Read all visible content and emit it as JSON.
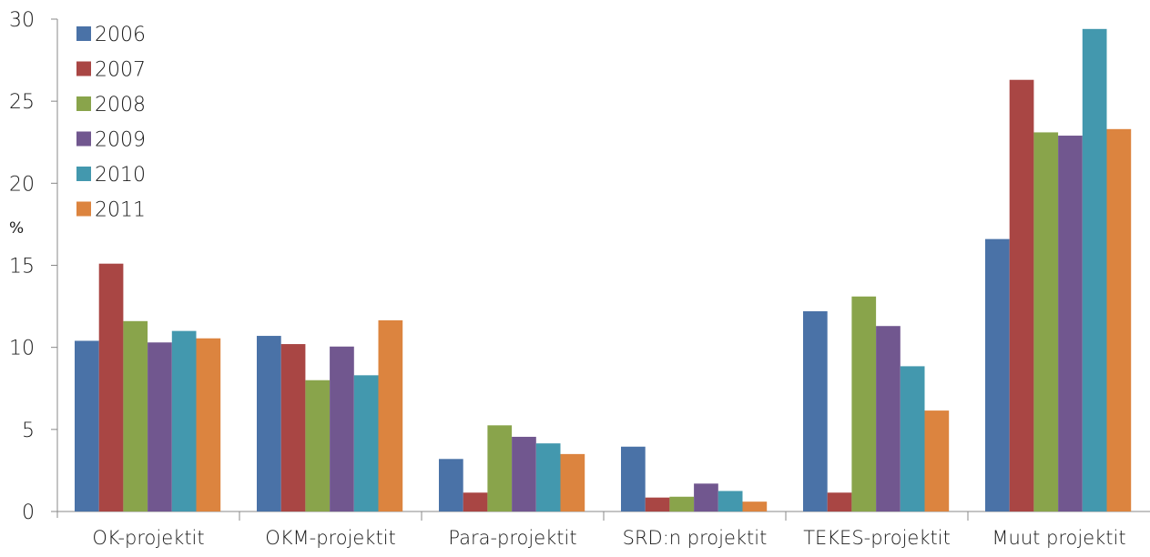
{
  "chart_data": {
    "type": "bar",
    "title": "",
    "xlabel": "",
    "ylabel": "%",
    "ylim": [
      0,
      30
    ],
    "yticks": [
      0,
      5,
      10,
      15,
      20,
      25,
      30
    ],
    "grid": false,
    "legend_position": "top-left",
    "categories": [
      "OK-projektit",
      "OKM-projektit",
      "Para-projektit",
      "SRD:n projektit",
      "TEKES-projektit",
      "Muut projektit"
    ],
    "series": [
      {
        "name": "2006",
        "color": "#4a72a7",
        "values": [
          10.4,
          10.7,
          3.2,
          3.95,
          12.2,
          16.6
        ]
      },
      {
        "name": "2007",
        "color": "#a94644",
        "values": [
          15.1,
          10.2,
          1.15,
          0.85,
          1.15,
          26.3
        ]
      },
      {
        "name": "2008",
        "color": "#89a44b",
        "values": [
          11.6,
          8.0,
          5.25,
          0.9,
          13.1,
          23.1
        ]
      },
      {
        "name": "2009",
        "color": "#71578f",
        "values": [
          10.3,
          10.05,
          4.55,
          1.7,
          11.3,
          22.9
        ]
      },
      {
        "name": "2010",
        "color": "#4398ae",
        "values": [
          11.0,
          8.3,
          4.15,
          1.25,
          8.85,
          29.4
        ]
      },
      {
        "name": "2011",
        "color": "#dc843f",
        "values": [
          10.55,
          11.65,
          3.5,
          0.6,
          6.15,
          23.3
        ]
      }
    ]
  }
}
